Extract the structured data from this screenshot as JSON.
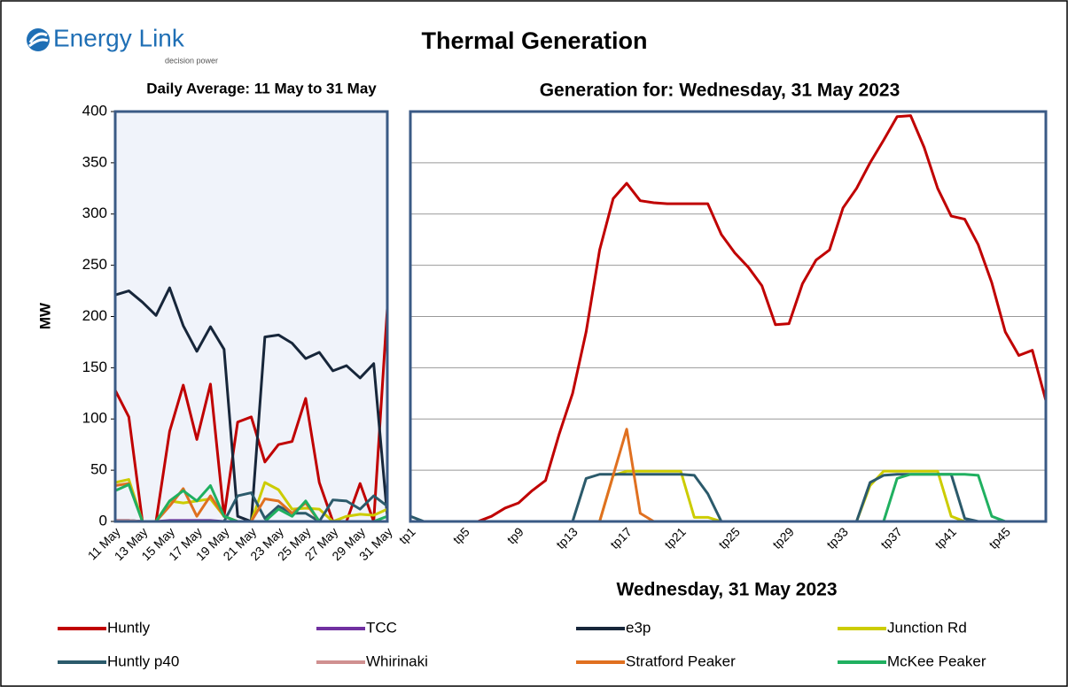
{
  "logo": {
    "name": "Energy Link",
    "tagline": "decision power"
  },
  "title": "Thermal Generation",
  "chart_data": [
    {
      "type": "line",
      "subtitle": "Daily Average: 11 May to 31 May",
      "y_label": "MW",
      "categories": [
        "11 May",
        null,
        "13 May",
        null,
        "15 May",
        null,
        "17 May",
        null,
        "19 May",
        null,
        "21 May",
        null,
        "23 May",
        null,
        "25 May",
        null,
        "27 May",
        null,
        "29 May",
        null,
        "31 May"
      ],
      "ylim": [
        0,
        400
      ],
      "yticks": [
        0,
        50,
        100,
        150,
        200,
        250,
        300,
        350,
        400
      ],
      "grid": false,
      "series": [
        {
          "name": "Huntly",
          "color": "#c00000",
          "values": [
            128,
            102,
            0,
            0,
            88,
            133,
            80,
            134,
            5,
            97,
            102,
            58,
            75,
            78,
            120,
            38,
            0,
            0,
            37,
            0,
            208
          ]
        },
        {
          "name": "TCC",
          "color": "#7030a0",
          "values": [
            1,
            1,
            0,
            0,
            1,
            1,
            1,
            1,
            0,
            0,
            0,
            0,
            0,
            0,
            0,
            0,
            0,
            0,
            0,
            0,
            0
          ]
        },
        {
          "name": "e3p",
          "color": "#17263a",
          "values": [
            221,
            225,
            214,
            201,
            228,
            191,
            166,
            190,
            168,
            5,
            0,
            180,
            182,
            174,
            159,
            165,
            147,
            152,
            140,
            154,
            5
          ]
        },
        {
          "name": "Junction Rd",
          "color": "#cccc00",
          "values": [
            38,
            41,
            0,
            0,
            20,
            18,
            20,
            22,
            5,
            0,
            0,
            38,
            31,
            12,
            13,
            12,
            0,
            5,
            7,
            6,
            12
          ]
        },
        {
          "name": "Huntly p40",
          "color": "#2b5a6b",
          "values": [
            1,
            1,
            0,
            0,
            0,
            0,
            0,
            0,
            0,
            25,
            28,
            3,
            15,
            8,
            8,
            0,
            21,
            20,
            12,
            25,
            15
          ]
        },
        {
          "name": "Whirinaki",
          "color": "#d09090",
          "values": [
            1,
            1,
            0,
            0,
            0,
            0,
            0,
            0,
            0,
            0,
            0,
            0,
            0,
            0,
            0,
            0,
            0,
            0,
            0,
            0,
            0
          ]
        },
        {
          "name": "Stratford Peaker",
          "color": "#e07020",
          "values": [
            35,
            37,
            0,
            0,
            15,
            32,
            5,
            25,
            5,
            0,
            0,
            22,
            20,
            8,
            18,
            0,
            0,
            0,
            0,
            0,
            0
          ]
        },
        {
          "name": "McKee Peaker",
          "color": "#20b060",
          "values": [
            30,
            36,
            0,
            0,
            20,
            30,
            20,
            35,
            5,
            0,
            0,
            0,
            12,
            5,
            20,
            0,
            0,
            0,
            0,
            0,
            5
          ]
        }
      ]
    },
    {
      "type": "line",
      "subtitle": "Generation for: Wednesday, 31 May 2023",
      "x_label": "Wednesday, 31 May 2023",
      "categories": [
        "tp1",
        null,
        null,
        null,
        "tp5",
        null,
        null,
        null,
        "tp9",
        null,
        null,
        null,
        "tp13",
        null,
        null,
        null,
        "tp17",
        null,
        null,
        null,
        "tp21",
        null,
        null,
        null,
        "tp25",
        null,
        null,
        null,
        "tp29",
        null,
        null,
        null,
        "tp33",
        null,
        null,
        null,
        "tp37",
        null,
        null,
        null,
        "tp41",
        null,
        null,
        null,
        "tp45",
        null,
        null,
        null
      ],
      "ylim": [
        0,
        400
      ],
      "yticks": [
        0,
        50,
        100,
        150,
        200,
        250,
        300,
        350,
        400
      ],
      "grid": true,
      "series": [
        {
          "name": "Huntly",
          "color": "#c00000",
          "values": [
            0,
            0,
            0,
            0,
            0,
            0,
            5,
            13,
            18,
            30,
            40,
            85,
            125,
            185,
            265,
            315,
            330,
            313,
            311,
            310,
            310,
            310,
            310,
            280,
            262,
            248,
            230,
            192,
            193,
            232,
            255,
            265,
            306,
            325,
            350,
            372,
            395,
            396,
            365,
            325,
            298,
            295,
            270,
            233,
            185,
            162,
            167,
            118
          ]
        },
        {
          "name": "TCC",
          "color": "#7030a0",
          "values": [
            0,
            0,
            0,
            0,
            0,
            0,
            0,
            0,
            0,
            0,
            0,
            0,
            0,
            0,
            0,
            0,
            0,
            0,
            0,
            0,
            0,
            0,
            0,
            0,
            0,
            0,
            0,
            0,
            0,
            0,
            0,
            0,
            0,
            0,
            0,
            0,
            0,
            0,
            0,
            0,
            0,
            0,
            0,
            0,
            0,
            0,
            0,
            0
          ]
        },
        {
          "name": "e3p",
          "color": "#17263a",
          "values": [
            0,
            0,
            0,
            0,
            0,
            0,
            0,
            0,
            0,
            0,
            0,
            0,
            0,
            0,
            0,
            0,
            0,
            0,
            0,
            0,
            0,
            0,
            0,
            0,
            0,
            0,
            0,
            0,
            0,
            0,
            0,
            0,
            0,
            0,
            0,
            0,
            0,
            0,
            0,
            0,
            0,
            0,
            0,
            0,
            0,
            0,
            0,
            0
          ]
        },
        {
          "name": "Junction Rd",
          "color": "#cccc00",
          "values": [
            0,
            0,
            0,
            0,
            0,
            0,
            0,
            0,
            0,
            0,
            0,
            0,
            0,
            0,
            0,
            45,
            49,
            49,
            49,
            49,
            49,
            4,
            4,
            0,
            0,
            0,
            0,
            0,
            0,
            0,
            0,
            0,
            0,
            0,
            35,
            49,
            49,
            49,
            49,
            49,
            5,
            0,
            0,
            0,
            0,
            0,
            0,
            0
          ]
        },
        {
          "name": "Huntly p40",
          "color": "#2b5a6b",
          "values": [
            5,
            0,
            0,
            0,
            0,
            0,
            0,
            0,
            0,
            0,
            0,
            0,
            0,
            42,
            46,
            46,
            46,
            46,
            46,
            46,
            46,
            45,
            27,
            0,
            0,
            0,
            0,
            0,
            0,
            0,
            0,
            0,
            0,
            0,
            38,
            45,
            46,
            46,
            46,
            46,
            46,
            3,
            0,
            0,
            0,
            0,
            0,
            0
          ]
        },
        {
          "name": "Whirinaki",
          "color": "#d09090",
          "values": [
            0,
            0,
            0,
            0,
            0,
            0,
            0,
            0,
            0,
            0,
            0,
            0,
            0,
            0,
            0,
            0,
            0,
            0,
            0,
            0,
            0,
            0,
            0,
            0,
            0,
            0,
            0,
            0,
            0,
            0,
            0,
            0,
            0,
            0,
            0,
            0,
            0,
            0,
            0,
            0,
            0,
            0,
            0,
            0,
            0,
            0,
            0,
            0
          ]
        },
        {
          "name": "Stratford Peaker",
          "color": "#e07020",
          "values": [
            0,
            0,
            0,
            0,
            0,
            0,
            0,
            0,
            0,
            0,
            0,
            0,
            0,
            0,
            0,
            45,
            90,
            8,
            0,
            0,
            0,
            0,
            0,
            0,
            0,
            0,
            0,
            0,
            0,
            0,
            0,
            0,
            0,
            0,
            0,
            0,
            0,
            0,
            0,
            0,
            0,
            0,
            0,
            0,
            0,
            0,
            0,
            0
          ]
        },
        {
          "name": "McKee Peaker",
          "color": "#20b060",
          "values": [
            0,
            0,
            0,
            0,
            0,
            0,
            0,
            0,
            0,
            0,
            0,
            0,
            0,
            0,
            0,
            0,
            0,
            0,
            0,
            0,
            0,
            0,
            0,
            0,
            0,
            0,
            0,
            0,
            0,
            0,
            0,
            0,
            0,
            0,
            0,
            0,
            42,
            46,
            46,
            46,
            46,
            46,
            45,
            5,
            0,
            0,
            0,
            0
          ]
        }
      ]
    }
  ]
}
